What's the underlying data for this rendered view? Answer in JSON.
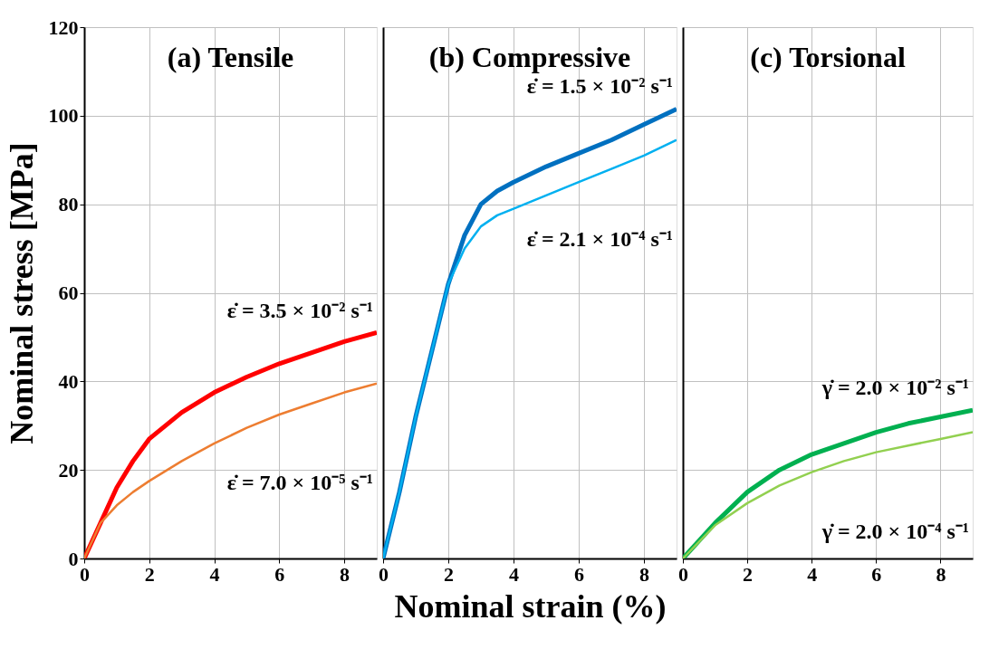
{
  "chart_data": [
    {
      "type": "line",
      "title": "(a) Tensile",
      "ylabel": "Nominal stress [MPa]",
      "xlim": [
        0,
        9
      ],
      "xticks": [
        0,
        2,
        4,
        6,
        8
      ],
      "ylim": [
        0,
        120
      ],
      "yticks": [
        0,
        20,
        40,
        60,
        80,
        100,
        120
      ],
      "grid": true,
      "legend": false,
      "x": [
        0,
        0.5,
        1,
        1.5,
        2,
        3,
        4,
        5,
        6,
        7,
        8,
        9
      ],
      "series": [
        {
          "name": "ε̇ = 3.5 × 10⁻² s⁻¹",
          "color": "#ff0000",
          "values": [
            0,
            8,
            16,
            22,
            27,
            33,
            37.5,
            41,
            44,
            46.5,
            49,
            51
          ]
        },
        {
          "name": "ε̇ = 7.0 × 10⁻⁵ s⁻¹",
          "color": "#ed7d31",
          "values": [
            0,
            8,
            12,
            15,
            17.5,
            22,
            26,
            29.5,
            32.5,
            35,
            37.5,
            39.5
          ]
        }
      ]
    },
    {
      "type": "line",
      "title": "(b) Compressive",
      "xlabel": "Nominal strain (%)",
      "xlim": [
        0,
        9
      ],
      "xticks": [
        0,
        2,
        4,
        6,
        8
      ],
      "ylim": [
        0,
        120
      ],
      "yticks": [
        0,
        20,
        40,
        60,
        80,
        100,
        120
      ],
      "grid": true,
      "legend": false,
      "tick_labels": "x",
      "x": [
        0,
        0.5,
        1,
        1.5,
        2,
        2.5,
        3,
        3.5,
        4,
        5,
        6,
        7,
        8,
        9
      ],
      "series": [
        {
          "name": "ε̇ = 1.5 × 10⁻² s⁻¹",
          "color": "#0070c0",
          "values": [
            0,
            15,
            32,
            47,
            62,
            73,
            80,
            83,
            85,
            88.5,
            91.5,
            94.5,
            98,
            101.5
          ]
        },
        {
          "name": "ε̇ = 2.1 × 10⁻⁴ s⁻¹",
          "color": "#00b0f0",
          "values": [
            0,
            15,
            32,
            47,
            62,
            70,
            75,
            77.5,
            79,
            82,
            85,
            88,
            91,
            94.5
          ]
        }
      ]
    },
    {
      "type": "line",
      "title": "(c) Torsional",
      "xlim": [
        0,
        9
      ],
      "xticks": [
        0,
        2,
        4,
        6,
        8
      ],
      "ylim": [
        0,
        120
      ],
      "yticks": [
        0,
        20,
        40,
        60,
        80,
        100,
        120
      ],
      "grid": true,
      "legend": false,
      "tick_labels": "x",
      "x": [
        0,
        1,
        2,
        3,
        4,
        5,
        6,
        7,
        8,
        9
      ],
      "series": [
        {
          "name": "γ̇ = 2.0 × 10⁻² s⁻¹",
          "color": "#00b050",
          "values": [
            0,
            8,
            15,
            20,
            23.5,
            26,
            28.5,
            30.5,
            32,
            33.5
          ]
        },
        {
          "name": "γ̇ = 2.0 × 10⁻⁴ s⁻¹",
          "color": "#92d050",
          "values": [
            0,
            7.5,
            12.5,
            16.5,
            19.5,
            22,
            24,
            25.5,
            27,
            28.5
          ]
        }
      ]
    }
  ]
}
